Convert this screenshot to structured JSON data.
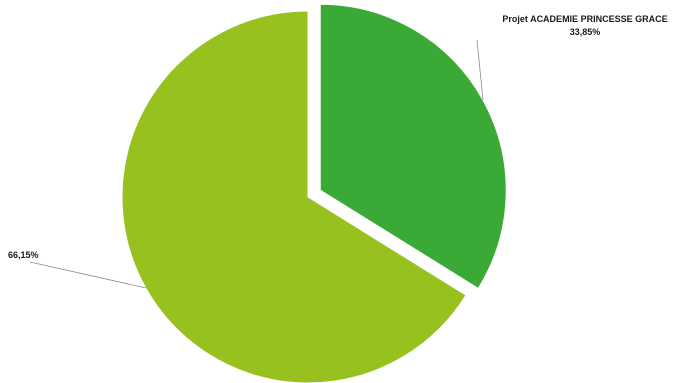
{
  "chart_data": {
    "type": "pie",
    "slices": [
      {
        "label": "Projet ACADEMIE PRINCESSE GRACE",
        "value": 33.85,
        "value_text": "33,85%",
        "color": "#3ba935",
        "exploded": true
      },
      {
        "label": "",
        "value": 66.15,
        "value_text": "66,15%",
        "color": "#96c11f",
        "exploded": false
      }
    ],
    "start_angle": "12 o'clock",
    "direction": "clockwise",
    "legend": "none",
    "title": ""
  }
}
